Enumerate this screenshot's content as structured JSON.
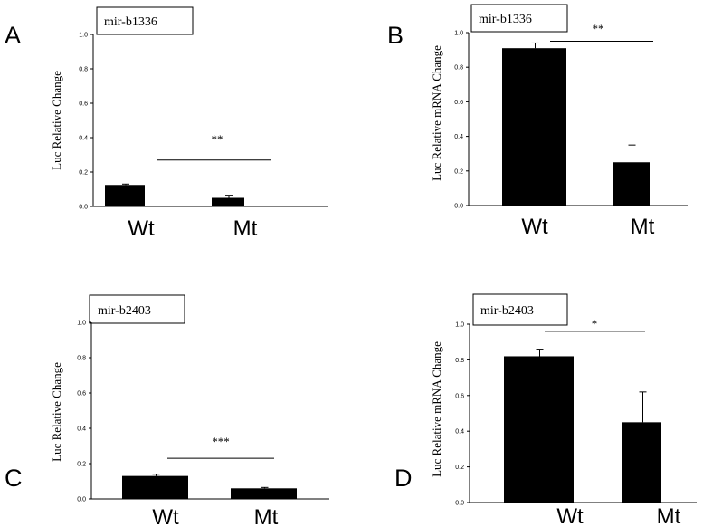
{
  "chart_data": [
    {
      "type": "bar",
      "panel_label": "A",
      "legend_box": "mir-b1336",
      "categories": [
        "Wt",
        "Mt"
      ],
      "values": [
        0.125,
        0.05
      ],
      "errors": [
        0.005,
        0.015
      ],
      "ylabel": "Luc  Relative   Change",
      "ylim": [
        0,
        1.0
      ],
      "yticks": [
        "0.0",
        "0.2",
        "0.4",
        "0.6",
        "0.8",
        "1.0"
      ],
      "significance": "**",
      "sig_line_y": 0.27
    },
    {
      "type": "bar",
      "panel_label": "B",
      "legend_box": "mir-b1336",
      "categories": [
        "Wt",
        "Mt"
      ],
      "values": [
        0.91,
        0.25
      ],
      "errors": [
        0.03,
        0.1
      ],
      "ylabel": "Luc  Relative   mRNA Change",
      "ylim": [
        0,
        1.0
      ],
      "yticks": [
        "0.0",
        "0.2",
        "0.4",
        "0.6",
        "0.8",
        "1.0"
      ],
      "significance": "**",
      "sig_line_y": 0.95
    },
    {
      "type": "bar",
      "panel_label": "C",
      "legend_box": "mir-b2403",
      "categories": [
        "Wt",
        "Mt"
      ],
      "values": [
        0.13,
        0.06
      ],
      "errors": [
        0.01,
        0.005
      ],
      "ylabel": "Luc  Relative   Change",
      "ylim": [
        0,
        1.0
      ],
      "yticks": [
        "0.0",
        "0.2",
        "0.4",
        "0.6",
        "0.8",
        "1.0"
      ],
      "significance": "***",
      "sig_line_y": 0.23
    },
    {
      "type": "bar",
      "panel_label": "D",
      "legend_box": "mir-b2403",
      "categories": [
        "Wt",
        "Mt"
      ],
      "values": [
        0.82,
        0.45
      ],
      "errors": [
        0.04,
        0.17
      ],
      "ylabel": "Luc  Relative   mRNA Change",
      "ylim": [
        0,
        1.0
      ],
      "yticks": [
        "0.0",
        "0.2",
        "0.4",
        "0.6",
        "0.8",
        "1.0"
      ],
      "significance": "*",
      "sig_line_y": 0.96
    }
  ]
}
